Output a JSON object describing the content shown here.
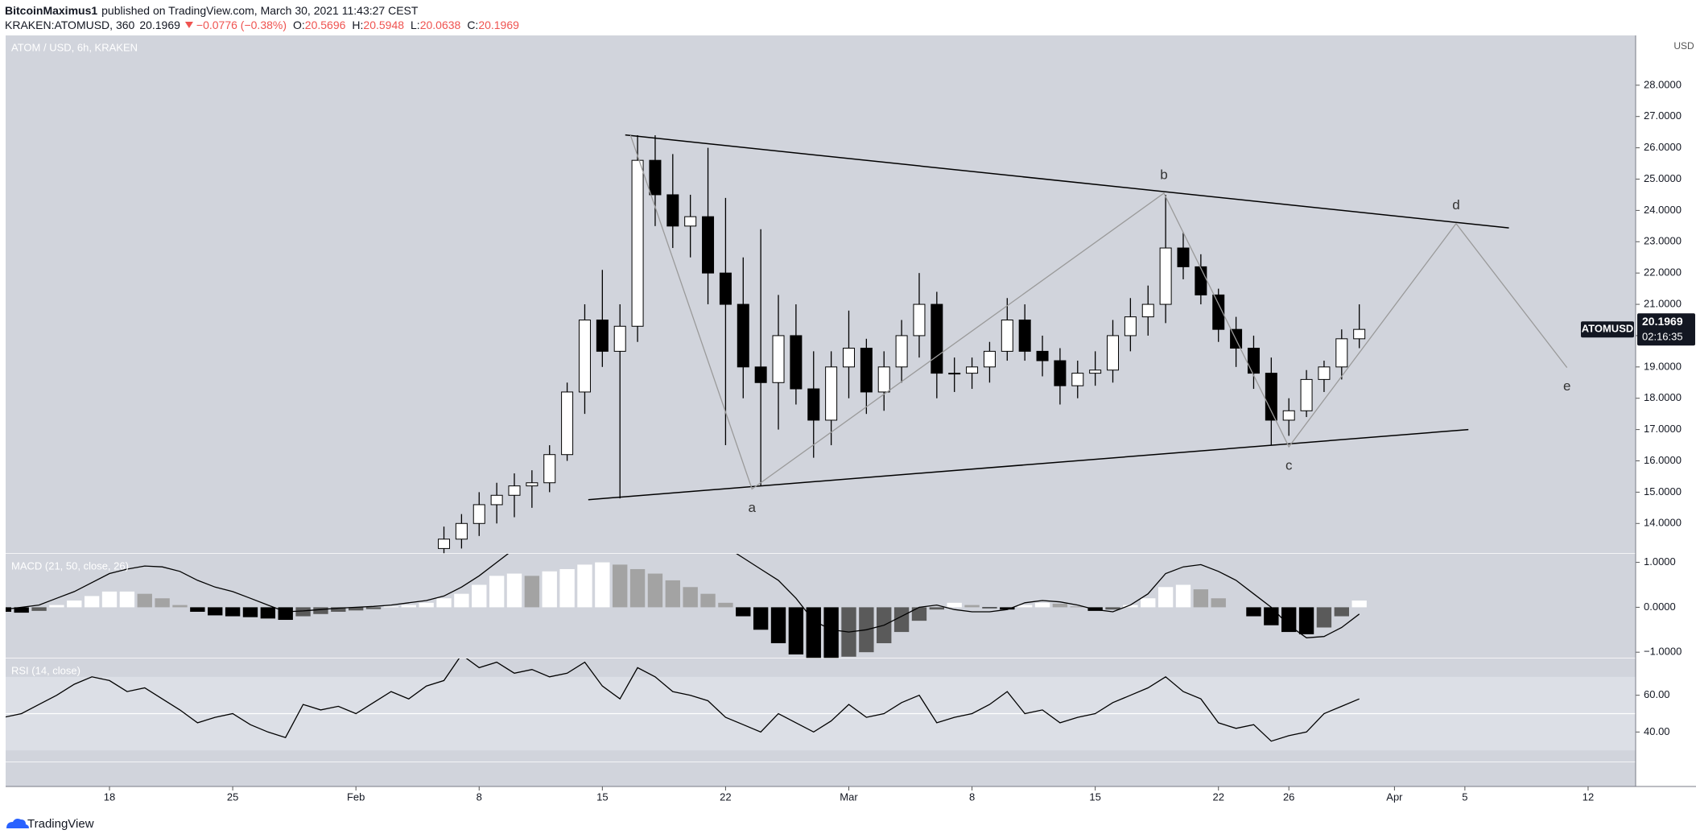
{
  "header": {
    "author": "BitcoinMaximus1",
    "published": "published on TradingView.com, March 30, 2021 11:43:27 CEST",
    "symbol": "KRAKEN:ATOMUSD, 360",
    "price": "20.1969",
    "change": "−0.0776 (−0.38%)",
    "ohlc": [
      {
        "label": "O:",
        "value": "20.5696"
      },
      {
        "label": "H:",
        "value": "20.5948"
      },
      {
        "label": "L:",
        "value": "20.0638"
      },
      {
        "label": "C:",
        "value": "20.1969"
      }
    ]
  },
  "footer": {
    "brand": "TradingView"
  },
  "chart_data": [
    {
      "type": "candlestick",
      "title": "ATOM / USD, 6h, KRAKEN",
      "currency": "USD",
      "badge_label": "ATOMUSD",
      "last_price": 20.1969,
      "countdown": "02:16:35",
      "up_color": "#ffffff",
      "down_color": "#000000",
      "wick_color": "#000000",
      "xlim": [
        12.1,
        104.7
      ],
      "xticks": [
        {
          "value": 18,
          "label": "18"
        },
        {
          "value": 25,
          "label": "25"
        },
        {
          "value": 32,
          "label": "Feb"
        },
        {
          "value": 39,
          "label": "8"
        },
        {
          "value": 46,
          "label": "15"
        },
        {
          "value": 53,
          "label": "22"
        },
        {
          "value": 60,
          "label": "Mar"
        },
        {
          "value": 67,
          "label": "8"
        },
        {
          "value": 74,
          "label": "15"
        },
        {
          "value": 81,
          "label": "22"
        },
        {
          "value": 85,
          "label": "26"
        },
        {
          "value": 91,
          "label": "Apr"
        },
        {
          "value": 95,
          "label": "5"
        },
        {
          "value": 102,
          "label": "12"
        }
      ],
      "ylim": [
        13.03,
        29.59
      ],
      "yticks": [
        {
          "value": 14,
          "label": "14.0000"
        },
        {
          "value": 15,
          "label": "15.0000"
        },
        {
          "value": 16,
          "label": "16.0000"
        },
        {
          "value": 17,
          "label": "17.0000"
        },
        {
          "value": 18,
          "label": "18.0000"
        },
        {
          "value": 19,
          "label": "19.0000"
        },
        {
          "value": 20,
          "label": "20.0000"
        },
        {
          "value": 21,
          "label": "21.0000"
        },
        {
          "value": 22,
          "label": "22.0000"
        },
        {
          "value": 23,
          "label": "23.0000"
        },
        {
          "value": 24,
          "label": "24.0000"
        },
        {
          "value": 25,
          "label": "25.0000"
        },
        {
          "value": 26,
          "label": "26.0000"
        },
        {
          "value": 27,
          "label": "27.0000"
        },
        {
          "value": 28,
          "label": "28.0000"
        }
      ],
      "x": [
        37,
        38,
        39,
        40,
        41,
        42,
        43,
        44,
        45,
        46,
        47,
        48,
        49,
        50,
        51,
        52,
        53,
        54,
        55,
        56,
        57,
        58,
        59,
        60,
        61,
        62,
        63,
        64,
        65,
        66,
        67,
        68,
        69,
        70,
        71,
        72,
        73,
        74,
        75,
        76,
        77,
        78,
        79,
        80,
        81,
        82,
        83,
        84,
        85,
        86,
        87,
        88,
        89
      ],
      "candles": [
        [
          13.2,
          13.9,
          12.8,
          13.5
        ],
        [
          13.5,
          14.3,
          13.2,
          14.0
        ],
        [
          14.0,
          15.0,
          13.6,
          14.6
        ],
        [
          14.6,
          15.3,
          14.0,
          14.9
        ],
        [
          14.9,
          15.6,
          14.2,
          15.2
        ],
        [
          15.2,
          15.7,
          14.5,
          15.3
        ],
        [
          15.3,
          16.5,
          15.0,
          16.2
        ],
        [
          16.2,
          18.5,
          16.0,
          18.2
        ],
        [
          18.2,
          21.0,
          17.5,
          20.5
        ],
        [
          20.5,
          22.1,
          19.0,
          19.5
        ],
        [
          19.5,
          21.0,
          14.8,
          20.3
        ],
        [
          20.3,
          26.4,
          19.8,
          25.6
        ],
        [
          25.6,
          26.4,
          23.5,
          24.5
        ],
        [
          24.5,
          25.8,
          22.8,
          23.5
        ],
        [
          23.5,
          24.5,
          22.5,
          23.8
        ],
        [
          23.8,
          26.0,
          21.0,
          22.0
        ],
        [
          22.0,
          24.4,
          16.5,
          21.0
        ],
        [
          21.0,
          22.5,
          18.0,
          19.0
        ],
        [
          19.0,
          23.4,
          15.2,
          18.5
        ],
        [
          18.5,
          21.3,
          17.0,
          20.0
        ],
        [
          20.0,
          21.0,
          17.8,
          18.3
        ],
        [
          18.3,
          19.5,
          16.1,
          17.3
        ],
        [
          17.3,
          19.5,
          16.5,
          19.0
        ],
        [
          19.0,
          20.8,
          18.0,
          19.6
        ],
        [
          19.6,
          19.9,
          17.5,
          18.2
        ],
        [
          18.2,
          19.5,
          17.6,
          19.0
        ],
        [
          19.0,
          20.5,
          18.5,
          20.0
        ],
        [
          20.0,
          22.0,
          19.3,
          21.0
        ],
        [
          21.0,
          21.4,
          18.0,
          18.8
        ],
        [
          18.8,
          19.3,
          18.2,
          18.8
        ],
        [
          18.8,
          19.3,
          18.3,
          19.0
        ],
        [
          19.0,
          19.8,
          18.5,
          19.5
        ],
        [
          19.5,
          21.2,
          19.2,
          20.5
        ],
        [
          20.5,
          21.0,
          19.2,
          19.5
        ],
        [
          19.5,
          20.0,
          18.7,
          19.2
        ],
        [
          19.2,
          19.6,
          17.8,
          18.4
        ],
        [
          18.4,
          19.2,
          18.0,
          18.8
        ],
        [
          18.8,
          19.5,
          18.4,
          18.9
        ],
        [
          18.9,
          20.5,
          18.5,
          20.0
        ],
        [
          20.0,
          21.2,
          19.5,
          20.6
        ],
        [
          20.6,
          21.6,
          20.0,
          21.0
        ],
        [
          21.0,
          24.5,
          20.4,
          22.8
        ],
        [
          22.8,
          23.3,
          21.8,
          22.2
        ],
        [
          22.2,
          22.6,
          21.0,
          21.3
        ],
        [
          21.3,
          21.5,
          19.8,
          20.2
        ],
        [
          20.2,
          20.6,
          19.0,
          19.6
        ],
        [
          19.6,
          20.0,
          18.3,
          18.8
        ],
        [
          18.8,
          19.3,
          16.5,
          17.3
        ],
        [
          17.3,
          18.0,
          16.8,
          17.6
        ],
        [
          17.6,
          18.9,
          17.4,
          18.6
        ],
        [
          18.6,
          19.2,
          18.2,
          19.0
        ],
        [
          19.0,
          20.2,
          18.6,
          19.9
        ],
        [
          19.9,
          21.0,
          19.6,
          20.2
        ]
      ],
      "trendlines": [
        {
          "x": [
            47.3,
            97.5
          ],
          "y": [
            26.41,
            23.44
          ]
        },
        {
          "x": [
            45.2,
            95.2
          ],
          "y": [
            14.76,
            17.0
          ]
        }
      ],
      "trendline_color": "#000000",
      "wave": {
        "x": [
          47.6,
          54.5,
          77.9,
          85.0,
          94.5,
          100.8
        ],
        "y": [
          26.4,
          15.1,
          24.55,
          16.45,
          23.58,
          18.98
        ],
        "labels": [
          null,
          "a",
          "b",
          "c",
          "d",
          "e"
        ],
        "color": "#9a9a9a"
      }
    },
    {
      "type": "macd",
      "title": "MACD (21, 50, close, 26)",
      "ylim": [
        -1.14,
        1.19
      ],
      "yticks": [
        {
          "value": 1,
          "label": "1.0000"
        },
        {
          "value": 0,
          "label": "0.0000"
        },
        {
          "value": -1,
          "label": "−1.0000"
        }
      ],
      "line_color": "#000000",
      "hist_colors": [
        "#ffffff",
        "#a3a3a3",
        "#000000",
        "#5a5a5a"
      ],
      "x": [
        12,
        13,
        14,
        15,
        16,
        17,
        18,
        19,
        20,
        21,
        22,
        23,
        24,
        25,
        26,
        27,
        28,
        29,
        30,
        31,
        32,
        33,
        34,
        35,
        36,
        37,
        38,
        39,
        40,
        41,
        42,
        43,
        44,
        45,
        46,
        47,
        48,
        49,
        50,
        51,
        52,
        53,
        54,
        55,
        56,
        57,
        58,
        59,
        60,
        61,
        62,
        63,
        64,
        65,
        66,
        67,
        68,
        69,
        70,
        71,
        72,
        73,
        74,
        75,
        76,
        77,
        78,
        79,
        80,
        81,
        82,
        83,
        84,
        85,
        86,
        87,
        88,
        89
      ],
      "line": [
        -0.05,
        0.0,
        0.05,
        0.2,
        0.35,
        0.55,
        0.75,
        0.85,
        0.92,
        0.9,
        0.8,
        0.6,
        0.45,
        0.35,
        0.2,
        0.05,
        -0.1,
        -0.08,
        -0.05,
        -0.02,
        0.0,
        0.02,
        0.05,
        0.1,
        0.15,
        0.25,
        0.45,
        0.7,
        1.0,
        1.3,
        1.6,
        2.0,
        2.4,
        2.7,
        2.9,
        3.0,
        3.0,
        2.8,
        2.5,
        2.1,
        1.7,
        1.35,
        1.1,
        0.85,
        0.6,
        0.2,
        -0.3,
        -0.5,
        -0.55,
        -0.5,
        -0.4,
        -0.2,
        0.0,
        0.05,
        -0.05,
        -0.1,
        -0.1,
        -0.05,
        0.1,
        0.15,
        0.12,
        0.05,
        -0.05,
        -0.1,
        0.05,
        0.3,
        0.75,
        0.9,
        0.95,
        0.8,
        0.6,
        0.3,
        0.0,
        -0.4,
        -0.68,
        -0.65,
        -0.45,
        -0.15
      ],
      "histogram": [
        -0.1,
        -0.12,
        -0.08,
        0.05,
        0.15,
        0.25,
        0.35,
        0.35,
        0.3,
        0.2,
        0.05,
        -0.1,
        -0.18,
        -0.2,
        -0.22,
        -0.25,
        -0.28,
        -0.2,
        -0.15,
        -0.1,
        -0.07,
        -0.04,
        0.02,
        0.05,
        0.1,
        0.2,
        0.3,
        0.5,
        0.7,
        0.75,
        0.7,
        0.8,
        0.85,
        0.95,
        1.0,
        0.95,
        0.85,
        0.75,
        0.6,
        0.45,
        0.3,
        0.1,
        -0.2,
        -0.5,
        -0.8,
        -1.05,
        -1.15,
        -1.15,
        -1.1,
        -1.0,
        -0.8,
        -0.55,
        -0.3,
        -0.05,
        0.1,
        0.05,
        -0.02,
        -0.05,
        0.05,
        0.1,
        0.08,
        0.02,
        -0.08,
        -0.05,
        0.05,
        0.2,
        0.45,
        0.5,
        0.4,
        0.2,
        0.0,
        -0.2,
        -0.4,
        -0.55,
        -0.6,
        -0.45,
        -0.2,
        0.15
      ]
    },
    {
      "type": "rsi",
      "title": "RSI (14, close)",
      "ylim": [
        23.5,
        80
      ],
      "yticks": [
        {
          "value": 60,
          "label": "60.00"
        },
        {
          "value": 40,
          "label": "40.00"
        }
      ],
      "band": [
        30,
        70
      ],
      "midline": 50,
      "line_color": "#000000",
      "x": [
        12,
        13,
        14,
        15,
        16,
        17,
        18,
        19,
        20,
        21,
        22,
        23,
        24,
        25,
        26,
        27,
        28,
        29,
        30,
        31,
        32,
        33,
        34,
        35,
        36,
        37,
        38,
        39,
        40,
        41,
        42,
        43,
        44,
        45,
        46,
        47,
        48,
        49,
        50,
        51,
        52,
        53,
        54,
        55,
        56,
        57,
        58,
        59,
        60,
        61,
        62,
        63,
        64,
        65,
        66,
        67,
        68,
        69,
        70,
        71,
        72,
        73,
        74,
        75,
        76,
        77,
        78,
        79,
        80,
        81,
        82,
        83,
        84,
        85,
        86,
        87,
        88,
        89
      ],
      "values": [
        48,
        50,
        55,
        60,
        66,
        70,
        68,
        62,
        64,
        58,
        52,
        45,
        48,
        50,
        44,
        40,
        37,
        55,
        52,
        54,
        50,
        56,
        62,
        58,
        65,
        68,
        82,
        75,
        78,
        72,
        74,
        70,
        72,
        78,
        65,
        58,
        75,
        70,
        62,
        60,
        57,
        48,
        44,
        40,
        50,
        45,
        40,
        46,
        55,
        48,
        50,
        56,
        60,
        45,
        48,
        50,
        55,
        62,
        50,
        52,
        45,
        48,
        50,
        56,
        60,
        64,
        70,
        62,
        58,
        45,
        42,
        44,
        35,
        38,
        40,
        50,
        54,
        58
      ]
    }
  ]
}
